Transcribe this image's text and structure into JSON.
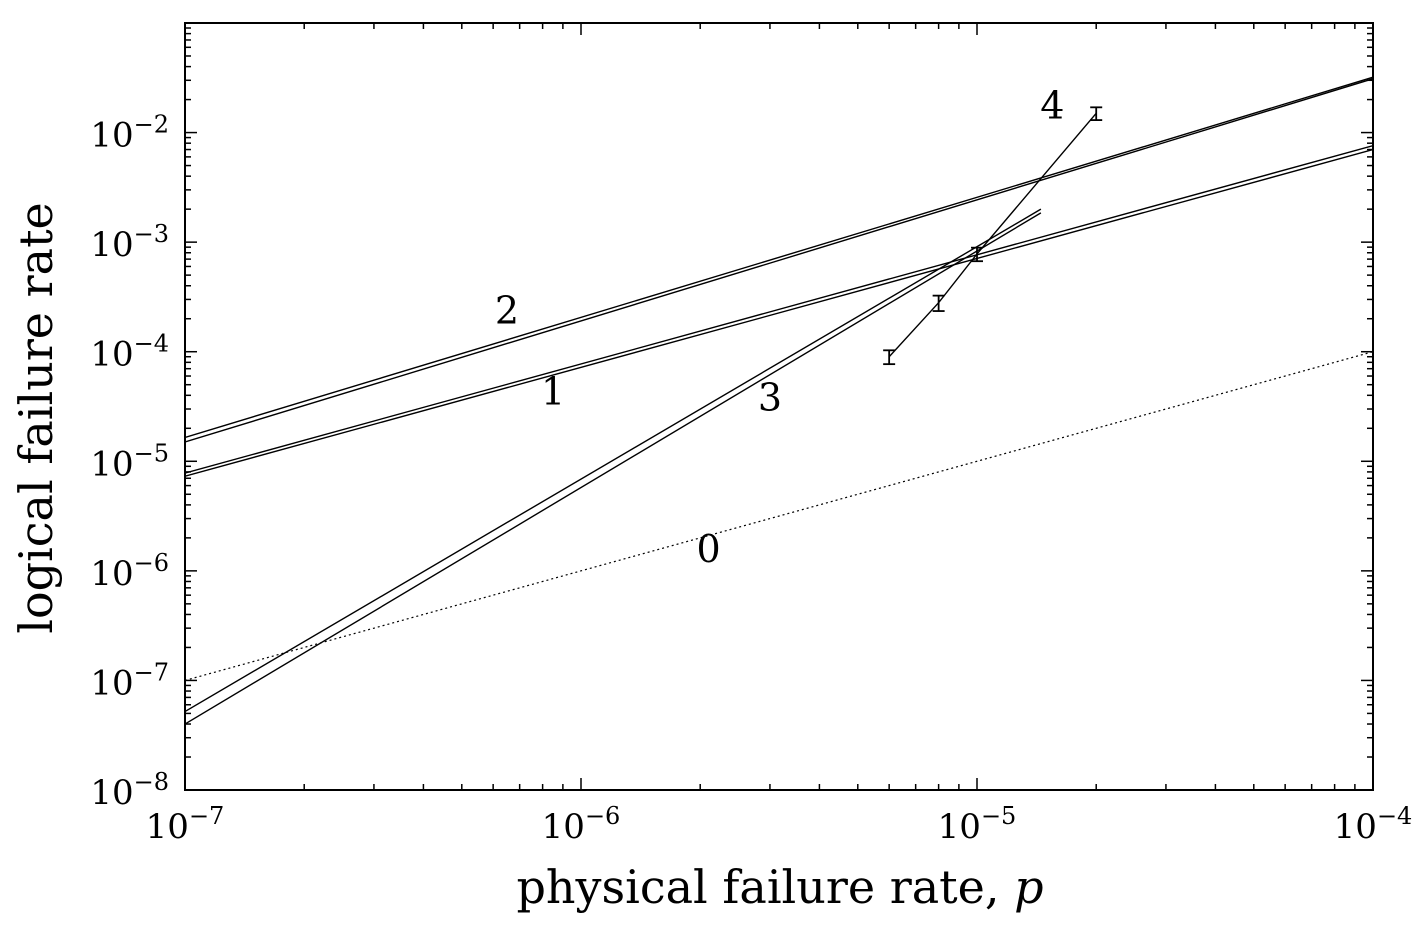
{
  "chart_data": {
    "type": "line",
    "xlabel": "physical failure rate, ",
    "xlabel_var": "p",
    "ylabel": "logical failure rate",
    "x_scale": "log",
    "y_scale": "log",
    "xlim": [
      1e-07,
      0.0001
    ],
    "ylim": [
      1e-08,
      0.1
    ],
    "grid": false,
    "x_ticks": [
      {
        "base": "10",
        "exp": "−7",
        "value": 1e-07
      },
      {
        "base": "10",
        "exp": "−6",
        "value": 1e-06
      },
      {
        "base": "10",
        "exp": "−5",
        "value": 1e-05
      },
      {
        "base": "10",
        "exp": "−4",
        "value": 0.0001
      }
    ],
    "y_ticks": [
      {
        "base": "10",
        "exp": "−8",
        "value": 1e-08
      },
      {
        "base": "10",
        "exp": "−7",
        "value": 1e-07
      },
      {
        "base": "10",
        "exp": "−6",
        "value": 1e-06
      },
      {
        "base": "10",
        "exp": "−5",
        "value": 1e-05
      },
      {
        "base": "10",
        "exp": "−4",
        "value": 0.0001
      },
      {
        "base": "10",
        "exp": "−3",
        "value": 0.001
      },
      {
        "base": "10",
        "exp": "−2",
        "value": 0.01
      }
    ],
    "series": [
      {
        "label": "0",
        "style": "dotted",
        "x": [
          1e-07,
          0.0001
        ],
        "y": [
          1e-07,
          0.0001
        ]
      },
      {
        "label": "1",
        "style": "solid",
        "x": [
          1e-07,
          0.0001
        ],
        "y": [
          7.3e-06,
          0.007
        ]
      },
      {
        "label": "1",
        "style": "solid",
        "x": [
          1e-07,
          0.0001
        ],
        "y": [
          7.8e-06,
          0.0076
        ]
      },
      {
        "label": "2",
        "style": "solid",
        "x": [
          1e-07,
          0.0001
        ],
        "y": [
          1.5e-05,
          0.031
        ]
      },
      {
        "label": "2",
        "style": "solid",
        "x": [
          1e-07,
          0.0001
        ],
        "y": [
          1.65e-05,
          0.032
        ]
      },
      {
        "label": "3",
        "style": "solid",
        "x": [
          1e-07,
          1.45e-05
        ],
        "y": [
          5.2e-08,
          0.002
        ]
      },
      {
        "label": "3",
        "style": "solid",
        "x": [
          1e-07,
          1.45e-05
        ],
        "y": [
          4e-08,
          0.00185
        ]
      },
      {
        "label": "4",
        "style": "solid",
        "markers": "errorbar",
        "x": [
          6e-06,
          8e-06,
          1e-05,
          2e-05
        ],
        "y": [
          9e-05,
          0.00028,
          0.00078,
          0.015
        ],
        "y_err_low": [
          1.3e-05,
          4.5e-05,
          0.00011,
          0.002
        ],
        "y_err_high": [
          1.3e-05,
          4.5e-05,
          0.00011,
          0.002
        ]
      }
    ],
    "annotations": [
      {
        "text": "0",
        "x": 2.1e-06,
        "y": 1.2e-06
      },
      {
        "text": "1",
        "x": 8.5e-07,
        "y": 3.3e-05
      },
      {
        "text": "2",
        "x": 6.5e-07,
        "y": 0.00018
      },
      {
        "text": "3",
        "x": 3e-06,
        "y": 2.9e-05
      },
      {
        "text": "4",
        "x": 1.55e-05,
        "y": 0.0135
      }
    ]
  }
}
